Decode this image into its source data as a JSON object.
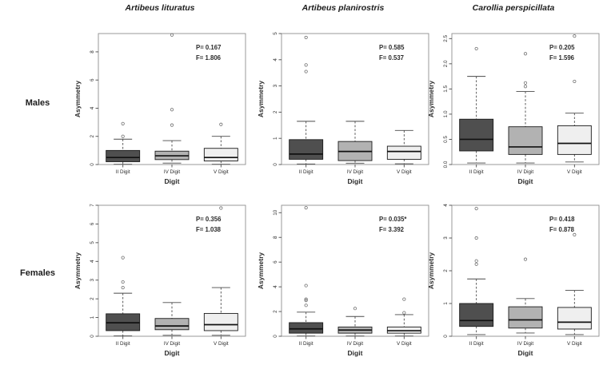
{
  "figure": {
    "column_titles": [
      "Artibeus lituratus",
      "Artibeus planirostris",
      "Carollia perspicillata"
    ],
    "row_labels": [
      "Males",
      "Females"
    ],
    "colors": {
      "frame": "#8f8f8f",
      "axis": "#4a4a4a",
      "text": "#2a2a2a",
      "box_stroke": "#1a1a1a",
      "median": "#111111",
      "outlier": "#6e6e6e",
      "box_fills": [
        "#4f4f4f",
        "#b2b2b2",
        "#efefef"
      ]
    }
  },
  "chart_data": [
    {
      "type": "boxplot",
      "row": "Males",
      "column": "Artibeus lituratus",
      "xlabel": "Digit",
      "ylabel": "Asymmetry",
      "categories": [
        "II Digit",
        "IV Digit",
        "V Digit"
      ],
      "ylim": [
        0,
        9.3
      ],
      "yticks": [
        0,
        2,
        4,
        6,
        8
      ],
      "ytick_labels": [
        "0",
        "2",
        "4",
        "6",
        "8"
      ],
      "annotation": {
        "p": "P= 0.167",
        "f": "F= 1.806"
      },
      "boxes": [
        {
          "category": "II Digit",
          "whisker_low": 0.02,
          "q1": 0.2,
          "median": 0.5,
          "q3": 1.0,
          "whisker_high": 1.8,
          "outliers": [
            2.0,
            2.9
          ]
        },
        {
          "category": "IV Digit",
          "whisker_low": 0.1,
          "q1": 0.35,
          "median": 0.62,
          "q3": 0.95,
          "whisker_high": 1.7,
          "outliers": [
            2.8,
            3.9,
            9.2
          ]
        },
        {
          "category": "V Digit",
          "whisker_low": 0.02,
          "q1": 0.25,
          "median": 0.5,
          "q3": 1.15,
          "whisker_high": 2.0,
          "outliers": [
            2.85
          ]
        }
      ]
    },
    {
      "type": "boxplot",
      "row": "Males",
      "column": "Artibeus planirostris",
      "xlabel": "Digit",
      "ylabel": "Asymmetry",
      "categories": [
        "II Digit",
        "IV Digit",
        "V Digit"
      ],
      "ylim": [
        0,
        5
      ],
      "yticks": [
        0,
        1,
        2,
        3,
        4,
        5
      ],
      "ytick_labels": [
        "0",
        "1",
        "2",
        "3",
        "4",
        "5"
      ],
      "annotation": {
        "p": "P= 0.585",
        "f": "F= 0.537"
      },
      "boxes": [
        {
          "category": "II Digit",
          "whisker_low": 0.02,
          "q1": 0.2,
          "median": 0.4,
          "q3": 0.95,
          "whisker_high": 1.65,
          "outliers": [
            3.55,
            3.8,
            4.85
          ]
        },
        {
          "category": "IV Digit",
          "whisker_low": 0.05,
          "q1": 0.15,
          "median": 0.5,
          "q3": 0.88,
          "whisker_high": 1.65,
          "outliers": []
        },
        {
          "category": "V Digit",
          "whisker_low": 0.03,
          "q1": 0.2,
          "median": 0.5,
          "q3": 0.7,
          "whisker_high": 1.3,
          "outliers": []
        }
      ]
    },
    {
      "type": "boxplot",
      "row": "Males",
      "column": "Carollia perspicillata",
      "xlabel": "Digit",
      "ylabel": "Asymmetry",
      "categories": [
        "II Digit",
        "IV Digit",
        "V Digit"
      ],
      "ylim": [
        0,
        2.6
      ],
      "yticks": [
        0,
        0.5,
        1.0,
        1.5,
        2.0,
        2.5
      ],
      "ytick_labels": [
        "0.0",
        "0.5",
        "1.0",
        "1.5",
        "2.0",
        "2.5"
      ],
      "annotation": {
        "p": "P= 0.205",
        "f": "F= 1.596"
      },
      "boxes": [
        {
          "category": "II Digit",
          "whisker_low": 0.03,
          "q1": 0.27,
          "median": 0.5,
          "q3": 0.9,
          "whisker_high": 1.75,
          "outliers": [
            2.3
          ]
        },
        {
          "category": "IV Digit",
          "whisker_low": 0.03,
          "q1": 0.2,
          "median": 0.35,
          "q3": 0.75,
          "whisker_high": 1.45,
          "outliers": [
            1.55,
            1.62,
            2.2
          ]
        },
        {
          "category": "V Digit",
          "whisker_low": 0.05,
          "q1": 0.2,
          "median": 0.42,
          "q3": 0.77,
          "whisker_high": 1.02,
          "outliers": [
            1.65,
            2.55
          ]
        }
      ]
    },
    {
      "type": "boxplot",
      "row": "Females",
      "column": "Artibeus lituratus",
      "xlabel": "Digit",
      "ylabel": "Asymmetry",
      "categories": [
        "II Digit",
        "IV Digit",
        "V Digit"
      ],
      "ylim": [
        0,
        7
      ],
      "yticks": [
        0,
        1,
        2,
        3,
        4,
        5,
        6,
        7
      ],
      "ytick_labels": [
        "0",
        "1",
        "2",
        "3",
        "4",
        "5",
        "6",
        "7"
      ],
      "annotation": {
        "p": "P= 0.356",
        "f": "F= 1.038"
      },
      "boxes": [
        {
          "category": "II Digit",
          "whisker_low": 0.02,
          "q1": 0.3,
          "median": 0.72,
          "q3": 1.2,
          "whisker_high": 2.3,
          "outliers": [
            2.6,
            2.9,
            4.2
          ]
        },
        {
          "category": "IV Digit",
          "whisker_low": 0.05,
          "q1": 0.35,
          "median": 0.55,
          "q3": 0.95,
          "whisker_high": 1.8,
          "outliers": []
        },
        {
          "category": "V Digit",
          "whisker_low": 0.05,
          "q1": 0.3,
          "median": 0.62,
          "q3": 1.22,
          "whisker_high": 2.6,
          "outliers": [
            6.85
          ]
        }
      ]
    },
    {
      "type": "boxplot",
      "row": "Females",
      "column": "Artibeus planirostris",
      "xlabel": "Digit",
      "ylabel": "Asymmetry",
      "categories": [
        "II Digit",
        "IV Digit",
        "V Digit"
      ],
      "ylim": [
        0,
        10.6
      ],
      "yticks": [
        0,
        2,
        4,
        6,
        8,
        10
      ],
      "ytick_labels": [
        "0",
        "2",
        "4",
        "6",
        "8",
        "10"
      ],
      "annotation": {
        "p": "P= 0.035*",
        "f": "F= 3.392"
      },
      "boxes": [
        {
          "category": "II Digit",
          "whisker_low": 0.02,
          "q1": 0.25,
          "median": 0.6,
          "q3": 1.1,
          "whisker_high": 1.95,
          "outliers": [
            2.5,
            2.9,
            3.0,
            4.1,
            10.4
          ]
        },
        {
          "category": "IV Digit",
          "whisker_low": 0.02,
          "q1": 0.25,
          "median": 0.5,
          "q3": 0.75,
          "whisker_high": 1.6,
          "outliers": [
            2.25
          ]
        },
        {
          "category": "V Digit",
          "whisker_low": 0.02,
          "q1": 0.25,
          "median": 0.45,
          "q3": 0.75,
          "whisker_high": 1.75,
          "outliers": [
            1.9,
            3.0
          ]
        }
      ]
    },
    {
      "type": "boxplot",
      "row": "Females",
      "column": "Carollia perspicillata",
      "xlabel": "Digit",
      "ylabel": "Asymmetry",
      "categories": [
        "II Digit",
        "IV Digit",
        "V Digit"
      ],
      "ylim": [
        0,
        4
      ],
      "yticks": [
        0,
        1,
        2,
        3,
        4
      ],
      "ytick_labels": [
        "0",
        "1",
        "2",
        "3",
        "4"
      ],
      "annotation": {
        "p": "P= 0.418",
        "f": "F= 0.878"
      },
      "boxes": [
        {
          "category": "II Digit",
          "whisker_low": 0.05,
          "q1": 0.3,
          "median": 0.48,
          "q3": 1.0,
          "whisker_high": 1.75,
          "outliers": [
            2.2,
            2.3,
            3.0,
            3.9
          ]
        },
        {
          "category": "IV Digit",
          "whisker_low": 0.1,
          "q1": 0.25,
          "median": 0.5,
          "q3": 0.9,
          "whisker_high": 1.15,
          "outliers": [
            2.35
          ]
        },
        {
          "category": "V Digit",
          "whisker_low": 0.05,
          "q1": 0.22,
          "median": 0.43,
          "q3": 0.88,
          "whisker_high": 1.4,
          "outliers": [
            3.1
          ]
        }
      ]
    }
  ]
}
